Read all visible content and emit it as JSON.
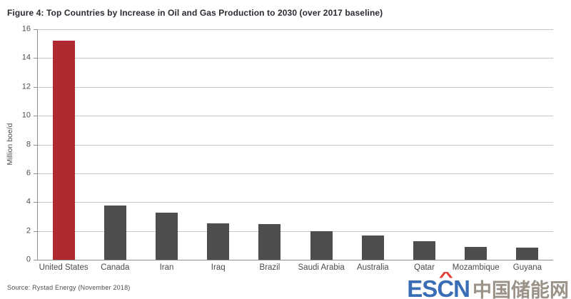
{
  "title": "Figure 4: Top Countries by Increase in Oil and Gas Production to 2030 (over 2017 baseline)",
  "source": "Source: Rystad Energy (November 2018)",
  "watermark": {
    "latin_part1": "ES",
    "latin_part2": "C",
    "latin_part3": "N",
    "caret": "^",
    "chinese": "中国储能网"
  },
  "colors": {
    "highlight_bar": "#af2a30",
    "default_bar": "#4d4d4d",
    "gridline": "#c6c6c6",
    "axis": "#8f8f8f"
  },
  "chart_data": {
    "type": "bar",
    "title": "Figure 4: Top Countries by Increase in Oil and Gas Production to 2030 (over 2017 baseline)",
    "categories": [
      "United States",
      "Canada",
      "Iran",
      "Iraq",
      "Brazil",
      "Saudi Arabia",
      "Australia",
      "Qatar",
      "Mozambique",
      "Guyana"
    ],
    "values": [
      15.2,
      3.75,
      3.25,
      2.55,
      2.5,
      2.0,
      1.7,
      1.3,
      0.9,
      0.85
    ],
    "highlight_index": 0,
    "xlabel": "",
    "ylabel": "Million boe/d",
    "ylim": [
      0,
      16
    ],
    "ytick_step": 2,
    "grid": true,
    "legend": false
  }
}
